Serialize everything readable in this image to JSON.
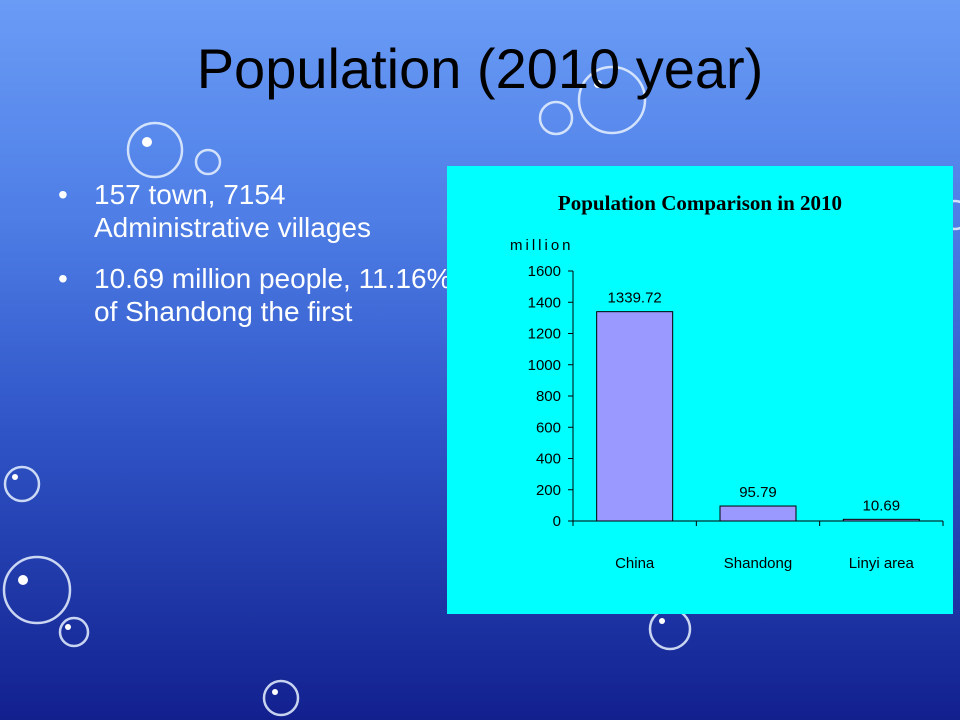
{
  "slide": {
    "title": "Population (2010 year)",
    "bullets": [
      "157 town, 7154 Administrative villages",
      "10.69 million people, 11.16% of Shandong the first"
    ]
  },
  "colors": {
    "chart_bg": "#00ffff",
    "bar_fill": "#9999ff",
    "text": "#000000",
    "bullet_text": "#ffffff"
  },
  "chart_data": {
    "type": "bar",
    "title": "Population Comparison in 2010",
    "ylabel": "million",
    "categories": [
      "China",
      "Shandong",
      "Linyi area"
    ],
    "values": [
      1339.72,
      95.79,
      10.69
    ],
    "data_labels": [
      "1339.72",
      "95.79",
      "10.69"
    ],
    "ylim": [
      0,
      1600
    ],
    "yticks": [
      0,
      200,
      400,
      600,
      800,
      1000,
      1200,
      1400,
      1600
    ],
    "grid": false,
    "legend": "none"
  }
}
